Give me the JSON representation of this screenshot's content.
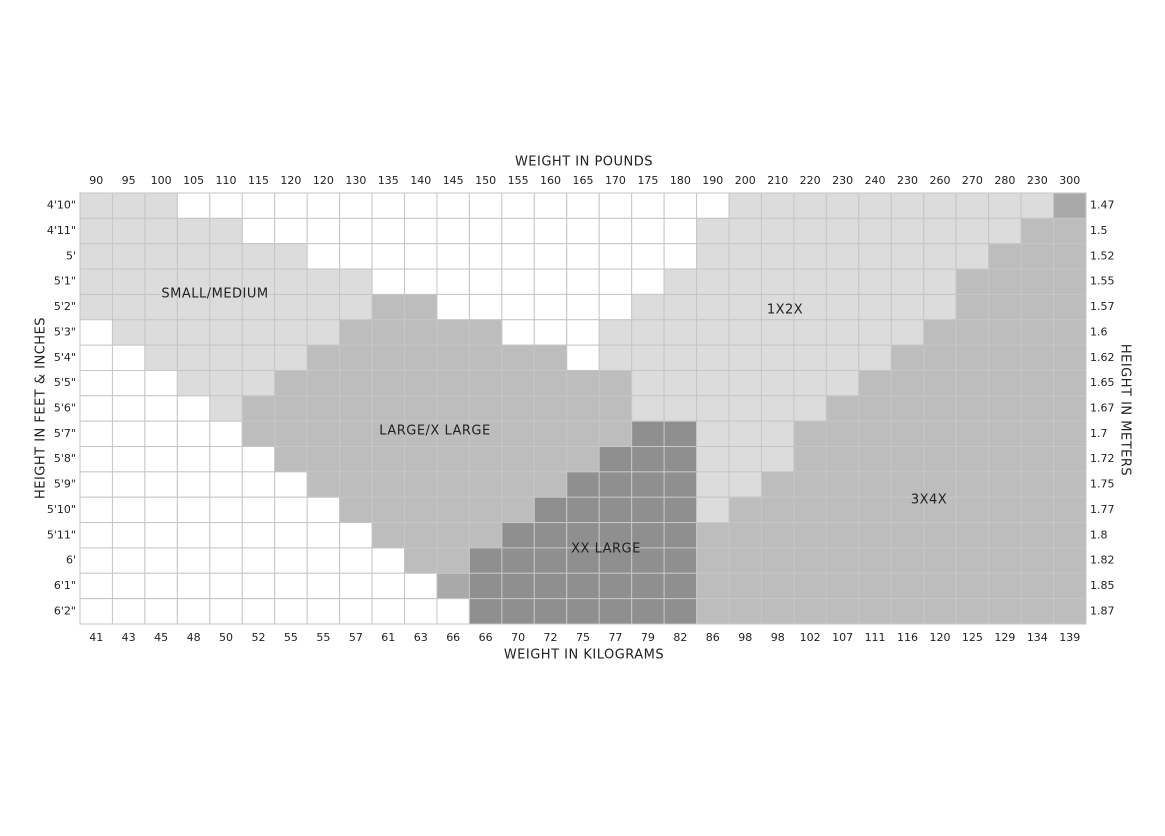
{
  "size_chart": {
    "top_axis_title": "WEIGHT IN POUNDS",
    "bottom_axis_title": "WEIGHT IN KILOGRAMS",
    "left_axis_title": "HEIGHT IN FEET & INCHES",
    "right_axis_title": "HEIGHT IN METERS",
    "pounds": [
      90,
      95,
      100,
      105,
      110,
      115,
      120,
      120,
      130,
      135,
      140,
      145,
      150,
      155,
      160,
      165,
      170,
      175,
      180,
      190,
      200,
      210,
      220,
      230,
      240,
      230,
      260,
      270,
      280,
      230,
      300
    ],
    "kilograms": [
      41,
      43,
      45,
      48,
      50,
      52,
      55,
      55,
      57,
      61,
      63,
      66,
      66,
      70,
      72,
      75,
      77,
      79,
      82,
      86,
      98,
      98,
      102,
      107,
      111,
      116,
      120,
      125,
      129,
      134,
      139
    ],
    "heights_feet_inches": [
      "4'10\"",
      "4'11\"",
      "5'",
      "5'1\"",
      "5'2\"",
      "5'3\"",
      "5'4\"",
      "5'5\"",
      "5'6\"",
      "5'7\"",
      "5'8\"",
      "5'9\"",
      "5'10\"",
      "5'11\"",
      "6'",
      "6'1\"",
      "6'2\""
    ],
    "heights_meters": [
      1.47,
      1.5,
      1.52,
      1.55,
      1.57,
      1.6,
      1.62,
      1.65,
      1.67,
      1.7,
      1.72,
      1.75,
      1.77,
      1.8,
      1.82,
      1.85,
      1.87
    ],
    "zones": [
      "SMALL/MEDIUM",
      "LARGE/X LARGE",
      "XX LARGE",
      "1X2X",
      "3X4X"
    ]
  }
}
